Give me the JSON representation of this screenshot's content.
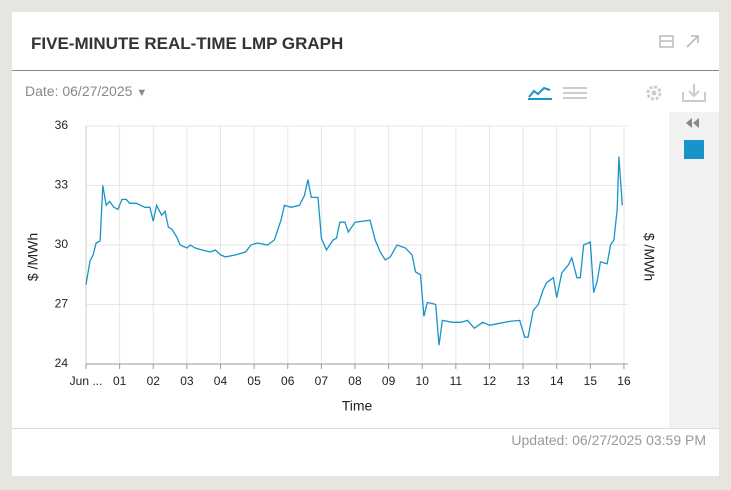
{
  "header": {
    "title": "FIVE-MINUTE REAL-TIME LMP GRAPH"
  },
  "toolbar": {
    "date_label": "Date: 06/27/2025"
  },
  "footer": {
    "updated": "Updated: 06/27/2025 03:59 PM"
  },
  "chart_data": {
    "type": "line",
    "ylabel": "$ /MWh",
    "y2label": "$ /MWh",
    "xlabel": "Time",
    "xlim": [
      0,
      16.12
    ],
    "ylim": [
      24,
      36
    ],
    "xticks": [
      {
        "value": 0,
        "label": "Jun ..."
      },
      {
        "value": 1,
        "label": "01"
      },
      {
        "value": 2,
        "label": "02"
      },
      {
        "value": 3,
        "label": "03"
      },
      {
        "value": 4,
        "label": "04"
      },
      {
        "value": 5,
        "label": "05"
      },
      {
        "value": 6,
        "label": "06"
      },
      {
        "value": 7,
        "label": "07"
      },
      {
        "value": 8,
        "label": "08"
      },
      {
        "value": 9,
        "label": "09"
      },
      {
        "value": 10,
        "label": "10"
      },
      {
        "value": 11,
        "label": "11"
      },
      {
        "value": 12,
        "label": "12"
      },
      {
        "value": 13,
        "label": "13"
      },
      {
        "value": 14,
        "label": "14"
      },
      {
        "value": 15,
        "label": "15"
      },
      {
        "value": 16,
        "label": "16"
      }
    ],
    "yticks": [
      24,
      27,
      30,
      33,
      36
    ],
    "grid": true,
    "series": [
      {
        "color": "#1a93c9",
        "x": [
          0,
          0.12,
          0.21,
          0.3,
          0.42,
          0.5,
          0.6,
          0.7,
          0.83,
          0.95,
          1.07,
          1.2,
          1.3,
          1.5,
          1.75,
          1.9,
          2.0,
          2.1,
          2.25,
          2.35,
          2.45,
          2.55,
          2.7,
          2.8,
          3.0,
          3.1,
          3.25,
          3.45,
          3.7,
          3.85,
          4.0,
          4.15,
          4.45,
          4.75,
          4.9,
          5.1,
          5.4,
          5.6,
          5.8,
          5.9,
          6.1,
          6.35,
          6.5,
          6.6,
          6.7,
          6.9,
          7.0,
          7.15,
          7.35,
          7.45,
          7.55,
          7.7,
          7.8,
          8.0,
          8.45,
          8.6,
          8.75,
          8.9,
          9.05,
          9.25,
          9.5,
          9.7,
          9.8,
          9.95,
          10.05,
          10.15,
          10.3,
          10.4,
          10.5,
          10.6,
          10.9,
          11.15,
          11.35,
          11.55,
          11.8,
          12.0,
          12.3,
          12.6,
          12.9,
          13.05,
          13.15,
          13.3,
          13.45,
          13.6,
          13.7,
          13.9,
          14.0,
          14.15,
          14.35,
          14.45,
          14.6,
          14.7,
          14.8,
          15.0,
          15.1,
          15.2,
          15.3,
          15.5,
          15.6,
          15.7,
          15.8,
          15.85,
          15.95
        ],
        "values": [
          28.0,
          29.2,
          29.5,
          30.1,
          30.2,
          33.0,
          32.0,
          32.2,
          31.9,
          31.8,
          32.3,
          32.3,
          32.1,
          32.1,
          31.9,
          31.9,
          31.2,
          32.0,
          31.5,
          31.7,
          30.9,
          30.8,
          30.4,
          30.0,
          29.85,
          30.0,
          29.85,
          29.75,
          29.65,
          29.75,
          29.5,
          29.4,
          29.5,
          29.65,
          30.0,
          30.1,
          30.0,
          30.25,
          31.25,
          32.0,
          31.9,
          32.0,
          32.5,
          33.3,
          32.4,
          32.4,
          30.35,
          29.75,
          30.25,
          30.35,
          31.15,
          31.15,
          30.65,
          31.15,
          31.25,
          30.25,
          29.65,
          29.25,
          29.4,
          30.0,
          29.85,
          29.5,
          28.65,
          28.5,
          26.4,
          27.1,
          27.05,
          27.0,
          24.95,
          26.2,
          26.1,
          26.1,
          26.2,
          25.8,
          26.1,
          25.95,
          26.05,
          26.15,
          26.2,
          25.35,
          25.35,
          26.7,
          27.0,
          27.75,
          28.1,
          28.35,
          27.35,
          28.6,
          29.0,
          29.35,
          28.35,
          28.35,
          30.0,
          30.15,
          27.6,
          28.15,
          29.15,
          29.05,
          30.0,
          30.25,
          31.8,
          34.45,
          32.0
        ]
      }
    ]
  }
}
